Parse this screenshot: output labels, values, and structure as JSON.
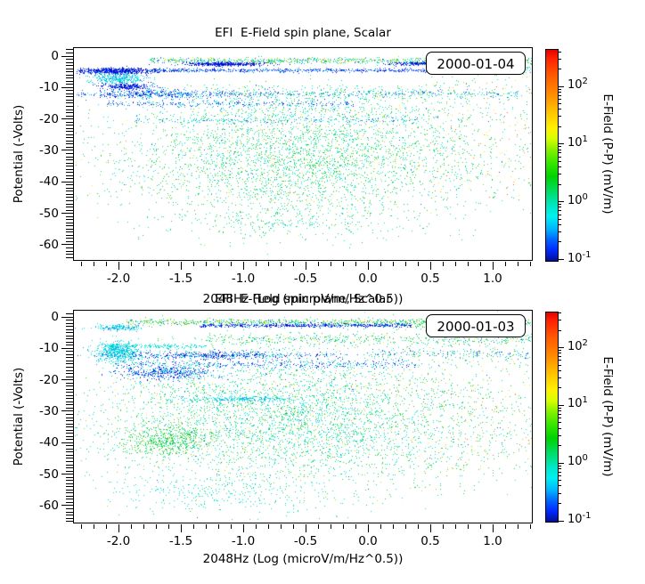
{
  "figure": {
    "background": "#ffffff",
    "text_color": "#000000"
  },
  "palette": {
    "navy": "#0008c8",
    "blue": "#1a50ff",
    "azure": "#2e86ff",
    "cyan": "#00dcdc",
    "teal": "#00e6b4",
    "spring": "#00d878",
    "green": "#2ec83c",
    "lime": "#7adc28",
    "yellowgreen": "#b4e000",
    "yellow": "#ffe600",
    "orange": "#ffa01e",
    "redorange": "#ff5a14"
  },
  "colorbar_gradient": [
    "#e40000 0%",
    "#ff2200 4%",
    "#ff5a00 12%",
    "#ff9100 22%",
    "#ffc800 30%",
    "#fff000 37%",
    "#d8ff00 42%",
    "#8cf000 47%",
    "#3ce800 53%",
    "#00d200 60%",
    "#00dc64 67%",
    "#00e6c8 74%",
    "#00f0f0 79%",
    "#00b4ff 85%",
    "#0064ff 90%",
    "#0028ff 95%",
    "#000f96 100%"
  ],
  "chart_data": [
    {
      "type": "scatter",
      "title": "EFI  E-Field spin plane, Scalar",
      "date_label": "2000-01-04",
      "xlabel": "2048Hz (Log (microV/m/Hz^0.5))",
      "ylabel": "Potential (-Volts)",
      "xlim": [
        -2.36,
        1.32
      ],
      "ylim": [
        2.8,
        -65.1
      ],
      "xticks": [
        "-2.0",
        "-1.5",
        "-1.0",
        "-0.5",
        "0.0",
        "0.5",
        "1.0"
      ],
      "yticks": [
        "0",
        "-10",
        "-20",
        "-30",
        "-40",
        "-50",
        "-60"
      ],
      "x_minor_step": 0.1,
      "y_minor_step": 1,
      "grid": false,
      "colorbar": {
        "label": "E-Field (P-P) (mV/m)",
        "scale": "log",
        "range_mV_per_m": [
          0.1,
          450
        ],
        "tick_labels": [
          {
            "base": "10",
            "exp": "2"
          },
          {
            "base": "10",
            "exp": "1"
          },
          {
            "base": "10",
            "exp": "0"
          },
          {
            "base": "10",
            "exp": "-1"
          }
        ]
      },
      "clusters": [
        {
          "n": 800,
          "x": [
            "u",
            -1.75,
            1.36
          ],
          "y": [
            "g",
            -1.3,
            0.45
          ],
          "c": [
            [
              "green",
              0.3
            ],
            [
              "spring",
              0.2
            ],
            [
              "cyan",
              0.15
            ],
            [
              "yellowgreen",
              0.1
            ],
            [
              "blue",
              0.08
            ],
            [
              "teal",
              0.07
            ],
            [
              "yellow",
              0.06
            ],
            [
              "orange",
              0.04
            ]
          ]
        },
        {
          "n": 450,
          "x": [
            "g",
            -1.15,
            0.16
          ],
          "y": [
            "g",
            -2.4,
            0.3
          ],
          "c": [
            [
              "navy",
              0.7
            ],
            [
              "blue",
              0.3
            ]
          ]
        },
        {
          "n": 260,
          "x": [
            "g",
            0.45,
            0.17
          ],
          "y": [
            "g",
            -2.3,
            0.28
          ],
          "c": [
            [
              "navy",
              0.55
            ],
            [
              "blue",
              0.3
            ],
            [
              "cyan",
              0.15
            ]
          ]
        },
        {
          "n": 650,
          "x": [
            "g",
            -2.02,
            0.15
          ],
          "y": [
            "g",
            -4.6,
            0.45
          ],
          "c": [
            [
              "navy",
              0.65
            ],
            [
              "blue",
              0.35
            ]
          ]
        },
        {
          "n": 650,
          "x": [
            "u",
            -1.75,
            0.55
          ],
          "y": [
            "g",
            -4.4,
            0.28
          ],
          "c": [
            [
              "blue",
              0.45
            ],
            [
              "navy",
              0.3
            ],
            [
              "cyan",
              0.15
            ],
            [
              "azure",
              0.1
            ]
          ]
        },
        {
          "n": 200,
          "x": [
            "u",
            0.55,
            1.36
          ],
          "y": [
            "g",
            -4.2,
            0.7
          ],
          "c": [
            [
              "cyan",
              0.35
            ],
            [
              "blue",
              0.25
            ],
            [
              "green",
              0.2
            ],
            [
              "spring",
              0.2
            ]
          ]
        },
        {
          "n": 380,
          "x": [
            "g",
            -2.0,
            0.11
          ],
          "y": [
            "g",
            -7.0,
            0.8
          ],
          "c": [
            [
              "cyan",
              0.75
            ],
            [
              "azure",
              0.25
            ]
          ]
        },
        {
          "n": 280,
          "x": [
            "g",
            -1.95,
            0.1
          ],
          "y": [
            "g",
            -9.6,
            0.5
          ],
          "c": [
            [
              "navy",
              0.55
            ],
            [
              "blue",
              0.45
            ]
          ]
        },
        {
          "n": 520,
          "x": [
            "g",
            -1.7,
            0.3
          ],
          "y": [
            "g",
            -12,
            0.7
          ],
          "c": [
            [
              "blue",
              0.45
            ],
            [
              "navy",
              0.25
            ],
            [
              "cyan",
              0.3
            ]
          ]
        },
        {
          "n": 380,
          "x": [
            "u",
            -1.2,
            1.2
          ],
          "y": [
            "g",
            -11.9,
            0.6
          ],
          "c": [
            [
              "blue",
              0.35
            ],
            [
              "cyan",
              0.35
            ],
            [
              "spring",
              0.15
            ],
            [
              "green",
              0.15
            ]
          ]
        },
        {
          "n": 260,
          "x": [
            "u",
            -2.1,
            -0.1
          ],
          "y": [
            "g",
            -15,
            0.5
          ],
          "c": [
            [
              "blue",
              0.4
            ],
            [
              "cyan",
              0.35
            ],
            [
              "navy",
              0.25
            ]
          ]
        },
        {
          "n": 200,
          "x": [
            "u",
            -1.9,
            0.4
          ],
          "y": [
            "g",
            -20.3,
            0.4
          ],
          "c": [
            [
              "cyan",
              0.4
            ],
            [
              "blue",
              0.3
            ],
            [
              "spring",
              0.3
            ]
          ]
        },
        {
          "n": 650,
          "x": [
            "g",
            -0.4,
            0.8
          ],
          "y": [
            "u",
            -9,
            -21
          ],
          "c": [
            [
              "cyan",
              0.35
            ],
            [
              "spring",
              0.25
            ],
            [
              "green",
              0.2
            ],
            [
              "teal",
              0.1
            ],
            [
              "yellow",
              0.05
            ],
            [
              "blue",
              0.05
            ]
          ]
        },
        {
          "n": 3400,
          "x": [
            "g",
            -0.55,
            0.75
          ],
          "y": [
            "g",
            -33,
            9
          ],
          "c": [
            [
              "spring",
              0.28
            ],
            [
              "green",
              0.24
            ],
            [
              "cyan",
              0.24
            ],
            [
              "teal",
              0.1
            ],
            [
              "lime",
              0.06
            ],
            [
              "yellowgreen",
              0.04
            ],
            [
              "yellow",
              0.02
            ],
            [
              "blue",
              0.01
            ],
            [
              "orange",
              0.01
            ]
          ]
        },
        {
          "n": 260,
          "x": [
            "g",
            -0.6,
            0.6
          ],
          "y": [
            "g",
            -53,
            2.5
          ],
          "c": [
            [
              "cyan",
              0.45
            ],
            [
              "spring",
              0.3
            ],
            [
              "green",
              0.25
            ]
          ]
        },
        {
          "n": 260,
          "x": [
            "u",
            0.5,
            1.36
          ],
          "y": [
            "u",
            -5,
            -45
          ],
          "c": [
            [
              "green",
              0.3
            ],
            [
              "spring",
              0.2
            ],
            [
              "cyan",
              0.15
            ],
            [
              "yellow",
              0.15
            ],
            [
              "orange",
              0.12
            ],
            [
              "redorange",
              0.08
            ]
          ]
        }
      ]
    },
    {
      "type": "scatter",
      "title": "EFI  E-Field spin plane, Scalar",
      "date_label": "2000-01-03",
      "xlabel": "2048Hz (Log (microV/m/Hz^0.5))",
      "ylabel": "Potential (-Volts)",
      "xlim": [
        -2.36,
        1.32
      ],
      "ylim": [
        2.3,
        -65.7
      ],
      "xticks": [
        "-2.0",
        "-1.5",
        "-1.0",
        "-0.5",
        "0.0",
        "0.5",
        "1.0"
      ],
      "yticks": [
        "0",
        "-10",
        "-20",
        "-30",
        "-40",
        "-50",
        "-60"
      ],
      "x_minor_step": 0.1,
      "y_minor_step": 1,
      "grid": false,
      "colorbar": {
        "label": "E-Field (P-P) (mV/m)",
        "scale": "log",
        "range_mV_per_m": [
          0.1,
          430
        ],
        "tick_labels": [
          {
            "base": "10",
            "exp": "2"
          },
          {
            "base": "10",
            "exp": "1"
          },
          {
            "base": "10",
            "exp": "0"
          },
          {
            "base": "10",
            "exp": "-1"
          }
        ]
      },
      "clusters": [
        {
          "n": 850,
          "x": [
            "u",
            -1.95,
            1.36
          ],
          "y": [
            "g",
            -1.5,
            0.5
          ],
          "c": [
            [
              "green",
              0.35
            ],
            [
              "spring",
              0.2
            ],
            [
              "cyan",
              0.15
            ],
            [
              "yellowgreen",
              0.1
            ],
            [
              "blue",
              0.1
            ],
            [
              "yellow",
              0.06
            ],
            [
              "orange",
              0.04
            ]
          ]
        },
        {
          "n": 550,
          "x": [
            "u",
            -1.35,
            0.35
          ],
          "y": [
            "g",
            -2.6,
            0.3
          ],
          "c": [
            [
              "navy",
              0.5
            ],
            [
              "blue",
              0.38
            ],
            [
              "cyan",
              0.12
            ]
          ]
        },
        {
          "n": 380,
          "x": [
            "g",
            0.75,
            0.33
          ],
          "y": [
            "g",
            -2.2,
            0.7
          ],
          "c": [
            [
              "green",
              0.45
            ],
            [
              "spring",
              0.3
            ],
            [
              "cyan",
              0.12
            ],
            [
              "lime",
              0.13
            ]
          ]
        },
        {
          "n": 190,
          "x": [
            "g",
            -2.0,
            0.09
          ],
          "y": [
            "g",
            -3.2,
            0.5
          ],
          "c": [
            [
              "cyan",
              0.7
            ],
            [
              "azure",
              0.3
            ]
          ]
        },
        {
          "n": 480,
          "x": [
            "u",
            -1.3,
            1.36
          ],
          "y": [
            "g",
            -7,
            0.85
          ],
          "c": [
            [
              "green",
              0.4
            ],
            [
              "spring",
              0.25
            ],
            [
              "cyan",
              0.2
            ],
            [
              "yellow",
              0.07
            ],
            [
              "blue",
              0.08
            ]
          ]
        },
        {
          "n": 560,
          "x": [
            "g",
            -2.0,
            0.09
          ],
          "y": [
            "g",
            -11,
            1.6
          ],
          "c": [
            [
              "cyan",
              0.85
            ],
            [
              "azure",
              0.15
            ]
          ]
        },
        {
          "n": 190,
          "x": [
            "u",
            -2.1,
            -1.3
          ],
          "y": [
            "g",
            -9.2,
            0.35
          ],
          "c": [
            [
              "cyan",
              0.8
            ],
            [
              "teal",
              0.2
            ]
          ]
        },
        {
          "n": 560,
          "x": [
            "g",
            -1.2,
            0.42
          ],
          "y": [
            "g",
            -12,
            0.65
          ],
          "c": [
            [
              "blue",
              0.42
            ],
            [
              "navy",
              0.28
            ],
            [
              "cyan",
              0.3
            ]
          ]
        },
        {
          "n": 190,
          "x": [
            "u",
            0.0,
            1.3
          ],
          "y": [
            "g",
            -11.6,
            0.8
          ],
          "c": [
            [
              "blue",
              0.35
            ],
            [
              "cyan",
              0.35
            ],
            [
              "green",
              0.3
            ]
          ]
        },
        {
          "n": 420,
          "x": [
            "u",
            -2.05,
            0.4
          ],
          "y": [
            "g",
            -15,
            0.7
          ],
          "c": [
            [
              "cyan",
              0.4
            ],
            [
              "blue",
              0.35
            ],
            [
              "navy",
              0.25
            ]
          ]
        },
        {
          "n": 460,
          "x": [
            "g",
            -1.62,
            0.2
          ],
          "y": [
            "g",
            -17.5,
            1.1
          ],
          "c": [
            [
              "blue",
              0.45
            ],
            [
              "navy",
              0.25
            ],
            [
              "cyan",
              0.3
            ]
          ]
        },
        {
          "n": 4400,
          "x": [
            "g",
            -0.6,
            0.85
          ],
          "y": [
            "g",
            -32,
            11
          ],
          "c": [
            [
              "cyan",
              0.3
            ],
            [
              "spring",
              0.26
            ],
            [
              "green",
              0.2
            ],
            [
              "teal",
              0.1
            ],
            [
              "lime",
              0.05
            ],
            [
              "yellowgreen",
              0.04
            ],
            [
              "yellow",
              0.02
            ],
            [
              "blue",
              0.02
            ],
            [
              "orange",
              0.01
            ]
          ]
        },
        {
          "n": 520,
          "x": [
            "g",
            -1.62,
            0.17
          ],
          "y": [
            "g",
            -39,
            2.4
          ],
          "c": [
            [
              "green",
              0.55
            ],
            [
              "spring",
              0.3
            ],
            [
              "lime",
              0.15
            ]
          ]
        },
        {
          "n": 230,
          "x": [
            "g",
            -1.05,
            0.2
          ],
          "y": [
            "g",
            -26,
            0.5
          ],
          "c": [
            [
              "cyan",
              0.8
            ],
            [
              "azure",
              0.2
            ]
          ]
        },
        {
          "n": 280,
          "x": [
            "g",
            -1.2,
            0.45
          ],
          "y": [
            "g",
            -56,
            3.2
          ],
          "c": [
            [
              "cyan",
              0.65
            ],
            [
              "spring",
              0.2
            ],
            [
              "teal",
              0.15
            ]
          ]
        },
        {
          "n": 330,
          "x": [
            "u",
            0.4,
            1.38
          ],
          "y": [
            "u",
            -5,
            -50
          ],
          "c": [
            [
              "green",
              0.3
            ],
            [
              "spring",
              0.2
            ],
            [
              "cyan",
              0.12
            ],
            [
              "yellow",
              0.15
            ],
            [
              "orange",
              0.12
            ],
            [
              "lime",
              0.06
            ],
            [
              "redorange",
              0.05
            ]
          ]
        }
      ]
    }
  ]
}
